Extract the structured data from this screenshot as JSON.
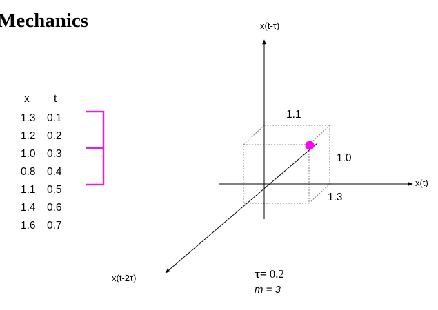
{
  "title": "Mechanics",
  "table": {
    "headers": [
      "x",
      "t"
    ],
    "rows": [
      {
        "x": "1.3",
        "t": "0.1"
      },
      {
        "x": "1.2",
        "t": "0.2"
      },
      {
        "x": "1.0",
        "t": "0.3"
      },
      {
        "x": "0.8",
        "t": "0.4"
      },
      {
        "x": "1.1",
        "t": "0.5"
      },
      {
        "x": "1.4",
        "t": "0.6"
      },
      {
        "x": "1.6",
        "t": "0.7"
      }
    ]
  },
  "axes": {
    "vertical": "x(t-τ)",
    "horizontal": "x(t)",
    "diagonal": "x(t-2τ)"
  },
  "box_values": {
    "top": "1.1",
    "right": "1.0",
    "bottom": "1.3"
  },
  "params": {
    "tau_symbol": "τ=",
    "tau_value": "0.2",
    "m": "m = 3"
  },
  "colors": {
    "bracket": "#e020e0",
    "point": "#ff00ff",
    "axis": "#000000",
    "box": "#808080"
  }
}
